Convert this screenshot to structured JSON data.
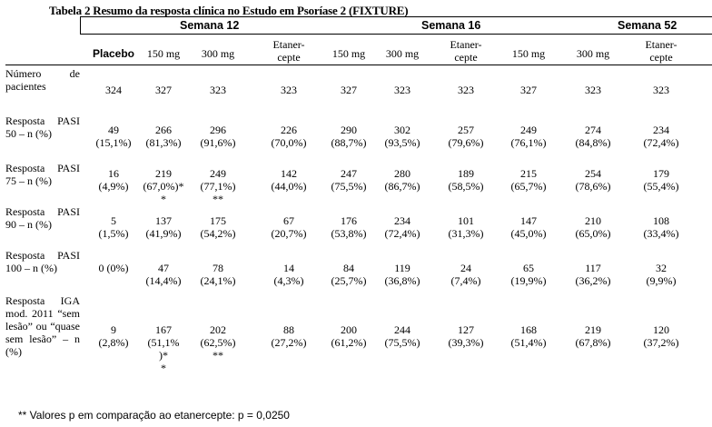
{
  "title": "Tabela 2 Resumo da resposta clínica no Estudo em Psoríase 2 (FIXTURE)",
  "weeks": [
    "Semana   12",
    "Semana 16",
    "Semana 52"
  ],
  "columns": [
    "Placebo",
    "150 mg",
    "300 mg",
    "Etaner-\ncepte",
    "150 mg",
    "300 mg",
    "Etaner-\ncepte",
    "150 mg",
    "300 mg",
    "Etaner-\ncepte"
  ],
  "rows": [
    {
      "label": "Número de pacientes",
      "values": [
        "324",
        "327",
        "323",
        "323",
        "327",
        "323",
        "323",
        "327",
        "323",
        "323"
      ]
    },
    {
      "label": "Resposta PASI 50 – n (%)",
      "values": [
        "49\n(15,1%)",
        "266\n(81,3%)",
        "296\n(91,6%)",
        "226\n(70,0%)",
        "290\n(88,7%)",
        "302\n(93,5%)",
        "257\n(79,6%)",
        "249\n(76,1%)",
        "274\n(84,8%)",
        "234\n(72,4%)"
      ]
    },
    {
      "label": "Resposta PASI 75 – n (%)",
      "values": [
        "16\n(4,9%)",
        "219\n(67,0%)*\n*",
        "249\n(77,1%)\n**",
        "142\n(44,0%)",
        "247\n(75,5%)",
        "280\n(86,7%)",
        "189\n(58,5%)",
        "215\n(65,7%)",
        "254\n(78,6%)",
        "179\n(55,4%)"
      ]
    },
    {
      "label": "Resposta PASI 90 – n (%)",
      "values": [
        "5\n(1,5%)",
        "137\n(41,9%)",
        "175\n(54,2%)",
        "67\n(20,7%)",
        "176\n(53,8%)",
        "234\n(72,4%)",
        "101\n(31,3%)",
        "147\n(45,0%)",
        "210\n(65,0%)",
        "108\n(33,4%)"
      ]
    },
    {
      "label": "Resposta PASI 100 – n (%)",
      "values": [
        "0 (0%)",
        "47\n(14,4%)",
        "78\n(24,1%)",
        "14\n(4,3%)",
        "84\n(25,7%)",
        "119\n(36,8%)",
        "24\n(7,4%)",
        "65\n(19,9%)",
        "117\n(36,2%)",
        "32\n(9,9%)"
      ]
    },
    {
      "label": "Resposta IGA mod. 2011 “sem lesão” ou “quase sem lesão” – n (%)",
      "values": [
        "9\n(2,8%)",
        "167\n(51,1%\n)*\n*",
        "202\n(62,5%)\n**",
        "88\n(27,2%)",
        "200\n(61,2%)",
        "244\n(75,5%)",
        "127\n(39,3%)",
        "168\n(51,4%)",
        "219\n(67,8%)",
        "120\n(37,2%)"
      ]
    }
  ],
  "footnote": "** Valores p em comparação ao etanercepte: p = 0,0250"
}
